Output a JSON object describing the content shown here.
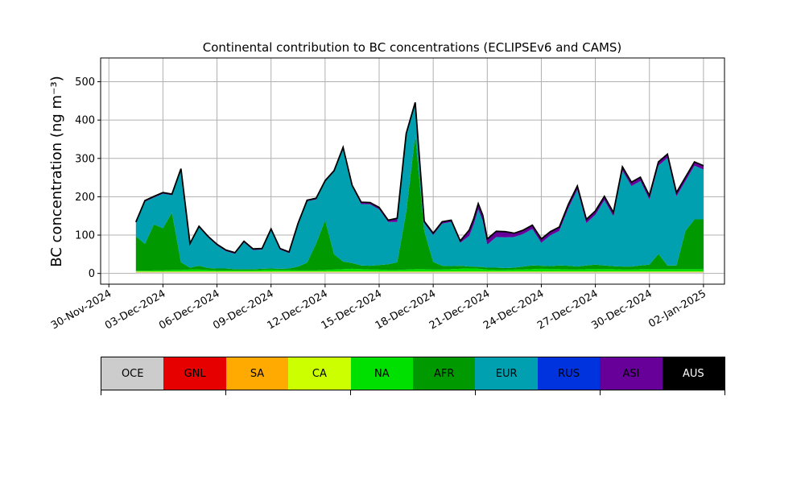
{
  "chart_data": {
    "type": "area",
    "stacked": true,
    "title": "Continental contribution to BC concentrations (ECLIPSEv6 and CAMS)",
    "xlabel": "",
    "ylabel": "BC concentration (ng m⁻³)",
    "xlim": [
      "2024-11-29T13:00",
      "2025-01-03T04:00"
    ],
    "ylim": [
      -28,
      562
    ],
    "grid": true,
    "x_ticks": [
      "30-Nov-2024",
      "03-Dec-2024",
      "06-Dec-2024",
      "09-Dec-2024",
      "12-Dec-2024",
      "15-Dec-2024",
      "18-Dec-2024",
      "21-Dec-2024",
      "24-Dec-2024",
      "27-Dec-2024",
      "30-Dec-2024",
      "02-Jan-2025"
    ],
    "y_ticks": [
      0,
      100,
      200,
      300,
      400,
      500
    ],
    "x": [
      "2024-12-01T12:00",
      "2024-12-02T00:00",
      "2024-12-02T12:00",
      "2024-12-03T00:00",
      "2024-12-03T12:00",
      "2024-12-04T00:00",
      "2024-12-04T12:00",
      "2024-12-05T00:00",
      "2024-12-05T12:00",
      "2024-12-06T00:00",
      "2024-12-06T12:00",
      "2024-12-07T00:00",
      "2024-12-07T12:00",
      "2024-12-08T00:00",
      "2024-12-08T12:00",
      "2024-12-09T00:00",
      "2024-12-09T12:00",
      "2024-12-10T00:00",
      "2024-12-10T12:00",
      "2024-12-11T00:00",
      "2024-12-11T12:00",
      "2024-12-12T00:00",
      "2024-12-12T12:00",
      "2024-12-13T00:00",
      "2024-12-13T12:00",
      "2024-12-14T00:00",
      "2024-12-14T12:00",
      "2024-12-15T00:00",
      "2024-12-15T12:00",
      "2024-12-16T00:00",
      "2024-12-16T12:00",
      "2024-12-17T00:00",
      "2024-12-17T12:00",
      "2024-12-18T00:00",
      "2024-12-18T12:00",
      "2024-12-19T00:00",
      "2024-12-19T12:00",
      "2024-12-20T00:00",
      "2024-12-20T06:00",
      "2024-12-20T12:00",
      "2024-12-20T18:00",
      "2024-12-21T00:00",
      "2024-12-21T12:00",
      "2024-12-22T00:00",
      "2024-12-22T12:00",
      "2024-12-23T00:00",
      "2024-12-23T12:00",
      "2024-12-24T00:00",
      "2024-12-24T12:00",
      "2024-12-25T00:00",
      "2024-12-25T12:00",
      "2024-12-26T00:00",
      "2024-12-26T12:00",
      "2024-12-27T00:00",
      "2024-12-27T12:00",
      "2024-12-28T00:00",
      "2024-12-28T12:00",
      "2024-12-29T00:00",
      "2024-12-29T12:00",
      "2024-12-30T00:00",
      "2024-12-30T12:00",
      "2024-12-31T00:00",
      "2024-12-31T12:00",
      "2025-01-01T00:00",
      "2025-01-01T12:00",
      "2025-01-02T00:00"
    ],
    "series": [
      {
        "name": "OCE",
        "color": "#cccccc",
        "values": [
          3,
          3,
          3,
          3,
          3,
          3,
          3,
          3,
          3,
          3,
          3,
          3,
          3,
          3,
          3,
          3,
          3,
          3,
          3,
          3,
          3,
          3,
          3,
          3,
          3,
          3,
          3,
          3,
          3,
          3,
          3,
          3,
          3,
          3,
          3,
          3,
          3,
          3,
          3,
          3,
          3,
          3,
          3,
          3,
          3,
          3,
          3,
          3,
          3,
          3,
          3,
          3,
          3,
          3,
          3,
          3,
          3,
          3,
          3,
          3,
          3,
          3,
          3,
          3,
          3,
          3
        ]
      },
      {
        "name": "GNL",
        "color": "#e60000",
        "values": [
          0,
          0,
          0,
          0,
          0,
          0,
          0,
          0,
          0,
          0,
          0,
          0,
          0,
          0,
          0,
          0,
          0,
          0,
          0,
          0,
          0,
          0,
          0,
          0,
          0,
          0,
          0,
          0,
          0,
          0,
          0,
          0,
          0,
          0,
          0,
          0,
          0,
          0,
          0,
          0,
          0,
          0,
          0,
          0,
          0,
          0,
          0,
          0,
          0,
          0,
          0,
          0,
          0,
          0,
          0,
          0,
          0,
          0,
          0,
          0,
          0,
          0,
          0,
          0,
          0,
          0
        ]
      },
      {
        "name": "SA",
        "color": "#ffaa00",
        "values": [
          1,
          1,
          1,
          1,
          1,
          1,
          1,
          1,
          1,
          1,
          1,
          1,
          1,
          1,
          1,
          1,
          1,
          1,
          1,
          1,
          1,
          1,
          1,
          1,
          1,
          1,
          1,
          1,
          1,
          1,
          1,
          1,
          1,
          1,
          1,
          1,
          1,
          1,
          1,
          1,
          1,
          1,
          1,
          1,
          1,
          1,
          1,
          1,
          1,
          1,
          1,
          1,
          1,
          1,
          1,
          1,
          1,
          1,
          1,
          1,
          1,
          1,
          1,
          1,
          1,
          1
        ]
      },
      {
        "name": "CA",
        "color": "#ccff00",
        "values": [
          1,
          1,
          1,
          1,
          1,
          1,
          1,
          1,
          1,
          1,
          1,
          1,
          1,
          1,
          1,
          1,
          1,
          1,
          1,
          1,
          1,
          1,
          1,
          1,
          1,
          1,
          1,
          1,
          1,
          1,
          1,
          1,
          1,
          1,
          1,
          1,
          1,
          1,
          1,
          1,
          1,
          1,
          1,
          1,
          1,
          1,
          1,
          1,
          1,
          1,
          1,
          1,
          1,
          1,
          1,
          1,
          1,
          1,
          1,
          1,
          1,
          1,
          1,
          1,
          1,
          1
        ]
      },
      {
        "name": "NA",
        "color": "#00e000",
        "values": [
          2,
          2,
          3,
          3,
          4,
          4,
          5,
          5,
          4,
          3,
          3,
          3,
          3,
          3,
          4,
          5,
          4,
          4,
          3,
          3,
          3,
          4,
          5,
          6,
          7,
          6,
          5,
          5,
          4,
          4,
          5,
          6,
          6,
          5,
          5,
          6,
          7,
          8,
          8,
          7,
          6,
          5,
          4,
          4,
          5,
          5,
          6,
          7,
          6,
          6,
          5,
          5,
          6,
          6,
          6,
          6,
          5,
          5,
          6,
          6,
          6,
          6,
          6,
          6,
          6,
          6
        ]
      },
      {
        "name": "AFR",
        "color": "#009a00",
        "values": [
          90,
          70,
          120,
          110,
          150,
          20,
          5,
          10,
          5,
          5,
          5,
          3,
          3,
          3,
          3,
          3,
          3,
          4,
          10,
          20,
          70,
          130,
          40,
          20,
          15,
          10,
          10,
          12,
          15,
          20,
          150,
          350,
          100,
          20,
          10,
          8,
          8,
          5,
          5,
          5,
          6,
          5,
          6,
          5,
          5,
          8,
          10,
          8,
          8,
          10,
          10,
          8,
          10,
          12,
          10,
          8,
          8,
          8,
          10,
          12,
          40,
          10,
          10,
          100,
          130,
          130
        ]
      },
      {
        "name": "EUR",
        "color": "#00a0b0",
        "values": [
          35,
          110,
          70,
          90,
          45,
          240,
          60,
          100,
          80,
          60,
          45,
          40,
          70,
          50,
          50,
          100,
          50,
          40,
          110,
          160,
          115,
          100,
          215,
          295,
          200,
          160,
          160,
          145,
          110,
          105,
          200,
          80,
          20,
          70,
          110,
          115,
          60,
          80,
          110,
          150,
          120,
          60,
          80,
          80,
          80,
          85,
          95,
          60,
          80,
          90,
          150,
          200,
          110,
          130,
          170,
          130,
          250,
          210,
          220,
          170,
          230,
          280,
          180,
          130,
          140,
          130
        ]
      },
      {
        "name": "RUS",
        "color": "#0033dd",
        "values": [
          0,
          0,
          0,
          0,
          0,
          0,
          0,
          0,
          0,
          0,
          0,
          0,
          0,
          0,
          0,
          0,
          0,
          0,
          0,
          0,
          0,
          0,
          0,
          0,
          0,
          0,
          0,
          0,
          0,
          0,
          0,
          0,
          0,
          0,
          0,
          0,
          0,
          0,
          0,
          0,
          0,
          0,
          0,
          0,
          0,
          0,
          0,
          0,
          0,
          0,
          0,
          0,
          0,
          0,
          0,
          0,
          0,
          0,
          0,
          0,
          0,
          0,
          0,
          0,
          0,
          0
        ]
      },
      {
        "name": "ASI",
        "color": "#660099",
        "values": [
          2,
          3,
          3,
          3,
          3,
          4,
          3,
          3,
          3,
          3,
          3,
          3,
          3,
          3,
          3,
          3,
          3,
          3,
          3,
          3,
          3,
          3,
          3,
          3,
          3,
          5,
          5,
          5,
          5,
          10,
          5,
          5,
          5,
          5,
          5,
          5,
          5,
          15,
          15,
          15,
          15,
          15,
          15,
          15,
          10,
          10,
          10,
          10,
          10,
          10,
          10,
          10,
          10,
          10,
          10,
          10,
          10,
          10,
          10,
          10,
          10,
          10,
          10,
          10,
          10,
          10
        ]
      },
      {
        "name": "AUS",
        "color": "#000000",
        "values": [
          0,
          0,
          0,
          0,
          0,
          0,
          0,
          0,
          0,
          0,
          0,
          0,
          0,
          0,
          0,
          0,
          0,
          0,
          0,
          0,
          0,
          0,
          0,
          0,
          0,
          0,
          0,
          0,
          0,
          0,
          0,
          0,
          0,
          0,
          0,
          0,
          0,
          0,
          0,
          0,
          0,
          0,
          0,
          0,
          0,
          0,
          0,
          0,
          0,
          0,
          0,
          0,
          0,
          0,
          0,
          0,
          0,
          0,
          0,
          0,
          0,
          0,
          0,
          0,
          0,
          0
        ]
      }
    ]
  }
}
